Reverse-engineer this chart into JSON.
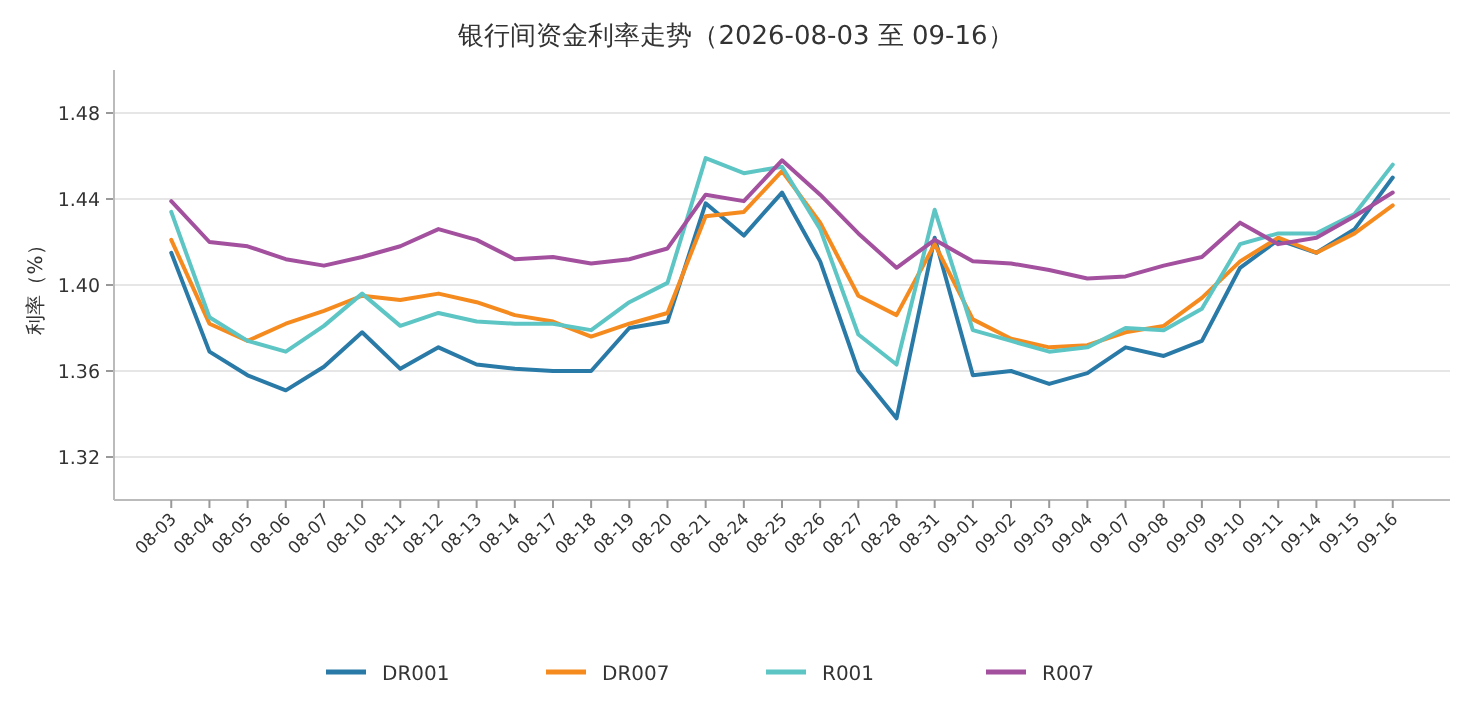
{
  "chart_data": {
    "type": "line",
    "title": "银行间资金利率走势（2026-08-03 至 09-16）",
    "ylabel": "利率（%）",
    "categories": [
      "08-03",
      "08-04",
      "08-05",
      "08-06",
      "08-07",
      "08-10",
      "08-11",
      "08-12",
      "08-13",
      "08-14",
      "08-17",
      "08-18",
      "08-19",
      "08-20",
      "08-21",
      "08-24",
      "08-25",
      "08-26",
      "08-27",
      "08-28",
      "08-31",
      "09-01",
      "09-02",
      "09-03",
      "09-04",
      "09-07",
      "09-08",
      "09-09",
      "09-10",
      "09-11",
      "09-14",
      "09-15",
      "09-16"
    ],
    "series": [
      {
        "name": "DR001",
        "color": "#2a7aa8",
        "values": [
          1.415,
          1.369,
          1.358,
          1.351,
          1.362,
          1.378,
          1.361,
          1.371,
          1.363,
          1.361,
          1.36,
          1.36,
          1.38,
          1.383,
          1.438,
          1.423,
          1.443,
          1.411,
          1.36,
          1.338,
          1.422,
          1.358,
          1.36,
          1.354,
          1.359,
          1.371,
          1.367,
          1.374,
          1.408,
          1.421,
          1.415,
          1.426,
          1.45
        ]
      },
      {
        "name": "DR007",
        "color": "#f58b1f",
        "values": [
          1.421,
          1.382,
          1.374,
          1.382,
          1.388,
          1.395,
          1.393,
          1.396,
          1.392,
          1.386,
          1.383,
          1.376,
          1.382,
          1.387,
          1.432,
          1.434,
          1.453,
          1.429,
          1.395,
          1.386,
          1.419,
          1.384,
          1.375,
          1.371,
          1.372,
          1.378,
          1.381,
          1.394,
          1.411,
          1.422,
          1.415,
          1.424,
          1.437
        ]
      },
      {
        "name": "R001",
        "color": "#5ec5c5",
        "values": [
          1.434,
          1.385,
          1.374,
          1.369,
          1.381,
          1.396,
          1.381,
          1.387,
          1.383,
          1.382,
          1.382,
          1.379,
          1.392,
          1.401,
          1.459,
          1.452,
          1.455,
          1.426,
          1.377,
          1.363,
          1.435,
          1.379,
          1.374,
          1.369,
          1.371,
          1.38,
          1.379,
          1.389,
          1.419,
          1.424,
          1.424,
          1.433,
          1.456
        ]
      },
      {
        "name": "R007",
        "color": "#a3519f",
        "values": [
          1.439,
          1.42,
          1.418,
          1.412,
          1.409,
          1.413,
          1.418,
          1.426,
          1.421,
          1.412,
          1.413,
          1.41,
          1.412,
          1.417,
          1.442,
          1.439,
          1.458,
          1.442,
          1.424,
          1.408,
          1.421,
          1.411,
          1.41,
          1.407,
          1.403,
          1.404,
          1.409,
          1.413,
          1.429,
          1.419,
          1.422,
          1.432,
          1.443
        ]
      }
    ],
    "ylim": [
      1.3,
      1.5
    ],
    "yticks": [
      1.32,
      1.36,
      {
        "value": 1.4,
        "label": "1.40"
      },
      1.44,
      1.48
    ],
    "grid": "y",
    "legend": "bottom",
    "marker": "none",
    "line_style": "solid"
  }
}
